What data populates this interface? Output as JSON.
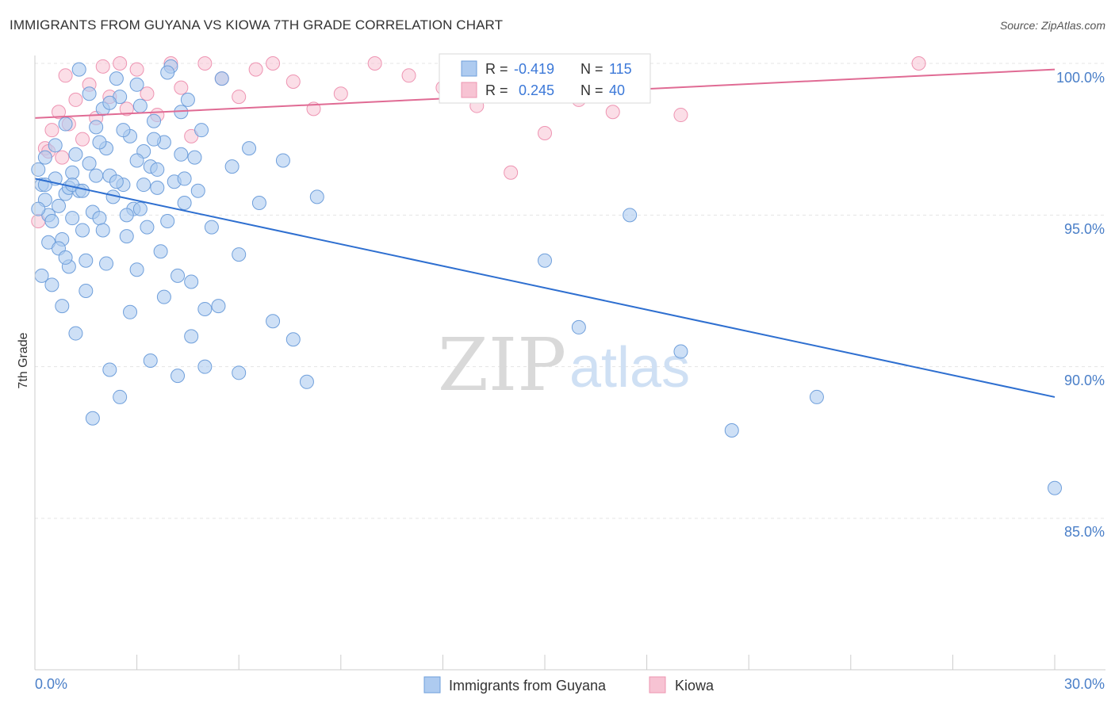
{
  "header": {
    "title": "IMMIGRANTS FROM GUYANA VS KIOWA 7TH GRADE CORRELATION CHART",
    "source": "Source: ZipAtlas.com"
  },
  "watermark": {
    "zip": "ZIP",
    "atlas": "atlas"
  },
  "legend_top": {
    "rows": [
      {
        "r_label": "R =",
        "r_value": "-0.419",
        "n_label": "N =",
        "n_value": "115"
      },
      {
        "r_label": "R =",
        "r_value": "0.245",
        "n_label": "N =",
        "n_value": "40"
      }
    ]
  },
  "legend_bottom": {
    "items": [
      "Immigrants from Guyana",
      "Kiowa"
    ]
  },
  "colors": {
    "blue_fill": "#aecbf0",
    "blue_stroke": "#6f9fdb",
    "blue_line": "#2e6fd0",
    "pink_fill": "#f7c3d3",
    "pink_stroke": "#ee94b2",
    "pink_line": "#e06b94",
    "axis_text": "#4a7fc8",
    "grid": "#e4e4e4"
  },
  "chart_data": {
    "type": "scatter",
    "title": "IMMIGRANTS FROM GUYANA VS KIOWA 7TH GRADE CORRELATION CHART",
    "xlabel": "",
    "ylabel": "7th Grade",
    "x_tick_labels": [
      "0.0%",
      "30.0%"
    ],
    "y_tick_labels": [
      "100.0%",
      "95.0%",
      "90.0%",
      "85.0%"
    ],
    "xlim": [
      0,
      30
    ],
    "ylim": [
      80.5,
      100.3
    ],
    "grid": true,
    "legend_position": "top-center",
    "series": [
      {
        "name": "Immigrants from Guyana",
        "color": "#aecbf0",
        "trend": {
          "x": [
            0,
            30
          ],
          "y": [
            96.2,
            89.0
          ]
        },
        "points": [
          [
            0.1,
            96.5
          ],
          [
            0.2,
            96.0
          ],
          [
            0.3,
            95.5
          ],
          [
            0.4,
            95.0
          ],
          [
            0.5,
            94.8
          ],
          [
            0.6,
            96.2
          ],
          [
            0.7,
            95.3
          ],
          [
            0.8,
            94.2
          ],
          [
            0.9,
            95.7
          ],
          [
            1.0,
            95.9
          ],
          [
            1.1,
            96.4
          ],
          [
            1.2,
            97.0
          ],
          [
            1.3,
            95.8
          ],
          [
            1.4,
            94.5
          ],
          [
            1.5,
            93.5
          ],
          [
            1.6,
            96.7
          ],
          [
            1.7,
            95.1
          ],
          [
            1.8,
            97.9
          ],
          [
            1.9,
            94.9
          ],
          [
            2.0,
            98.5
          ],
          [
            2.1,
            97.2
          ],
          [
            2.2,
            96.3
          ],
          [
            2.3,
            95.6
          ],
          [
            2.4,
            99.5
          ],
          [
            2.5,
            98.9
          ],
          [
            2.6,
            96.0
          ],
          [
            2.7,
            94.3
          ],
          [
            2.8,
            97.6
          ],
          [
            2.9,
            95.2
          ],
          [
            3.0,
            99.3
          ],
          [
            3.1,
            98.6
          ],
          [
            3.2,
            97.1
          ],
          [
            3.3,
            94.6
          ],
          [
            3.4,
            96.6
          ],
          [
            3.5,
            98.1
          ],
          [
            3.6,
            95.9
          ],
          [
            3.7,
            93.8
          ],
          [
            3.8,
            97.4
          ],
          [
            3.9,
            94.8
          ],
          [
            4.0,
            99.9
          ],
          [
            4.1,
            96.1
          ],
          [
            4.2,
            93.0
          ],
          [
            4.3,
            97.0
          ],
          [
            4.4,
            95.4
          ],
          [
            4.5,
            98.8
          ],
          [
            4.6,
            92.8
          ],
          [
            4.7,
            96.9
          ],
          [
            4.8,
            95.8
          ],
          [
            4.9,
            97.8
          ],
          [
            5.0,
            91.9
          ],
          [
            5.2,
            94.6
          ],
          [
            5.5,
            99.5
          ],
          [
            5.8,
            96.6
          ],
          [
            6.0,
            93.7
          ],
          [
            6.3,
            97.2
          ],
          [
            6.6,
            95.4
          ],
          [
            7.0,
            91.5
          ],
          [
            7.3,
            96.8
          ],
          [
            7.6,
            90.9
          ],
          [
            8.0,
            89.5
          ],
          [
            8.3,
            95.6
          ],
          [
            0.2,
            93.0
          ],
          [
            0.5,
            92.7
          ],
          [
            0.8,
            92.0
          ],
          [
            1.0,
            93.3
          ],
          [
            1.2,
            91.1
          ],
          [
            1.5,
            92.5
          ],
          [
            1.7,
            88.3
          ],
          [
            2.0,
            94.5
          ],
          [
            2.2,
            89.9
          ],
          [
            2.5,
            89.0
          ],
          [
            2.8,
            91.8
          ],
          [
            3.0,
            93.2
          ],
          [
            3.4,
            90.2
          ],
          [
            3.8,
            92.3
          ],
          [
            4.2,
            89.7
          ],
          [
            4.6,
            91.0
          ],
          [
            5.0,
            90.0
          ],
          [
            5.4,
            92.0
          ],
          [
            6.0,
            89.8
          ],
          [
            0.3,
            96.9
          ],
          [
            0.6,
            97.3
          ],
          [
            0.9,
            98.0
          ],
          [
            1.1,
            96.0
          ],
          [
            1.3,
            99.8
          ],
          [
            1.6,
            99.0
          ],
          [
            1.9,
            97.4
          ],
          [
            2.2,
            98.7
          ],
          [
            2.6,
            97.8
          ],
          [
            3.1,
            95.2
          ],
          [
            3.6,
            96.5
          ],
          [
            4.3,
            98.4
          ],
          [
            0.1,
            95.2
          ],
          [
            0.4,
            94.1
          ],
          [
            0.7,
            93.9
          ],
          [
            0.9,
            93.6
          ],
          [
            1.1,
            94.9
          ],
          [
            1.4,
            95.8
          ],
          [
            1.8,
            96.3
          ],
          [
            2.1,
            93.4
          ],
          [
            2.4,
            96.1
          ],
          [
            2.7,
            95.0
          ],
          [
            3.0,
            96.8
          ],
          [
            3.2,
            96.0
          ],
          [
            3.5,
            97.5
          ],
          [
            3.9,
            99.7
          ],
          [
            4.4,
            96.2
          ],
          [
            0.3,
            96.0
          ],
          [
            15.0,
            93.5
          ],
          [
            16.0,
            91.3
          ],
          [
            17.5,
            95.0
          ],
          [
            19.0,
            90.5
          ],
          [
            20.5,
            87.9
          ],
          [
            23.0,
            89.0
          ],
          [
            30.0,
            86.0
          ]
        ]
      },
      {
        "name": "Kiowa",
        "color": "#f7c3d3",
        "trend": {
          "x": [
            0,
            30
          ],
          "y": [
            98.2,
            99.8
          ]
        },
        "points": [
          [
            0.1,
            94.8
          ],
          [
            0.3,
            97.2
          ],
          [
            0.5,
            97.8
          ],
          [
            0.7,
            98.4
          ],
          [
            0.9,
            99.6
          ],
          [
            1.0,
            98.0
          ],
          [
            1.2,
            98.8
          ],
          [
            1.4,
            97.5
          ],
          [
            1.6,
            99.3
          ],
          [
            1.8,
            98.2
          ],
          [
            2.0,
            99.9
          ],
          [
            2.2,
            98.9
          ],
          [
            2.5,
            100.0
          ],
          [
            2.7,
            98.5
          ],
          [
            3.0,
            99.8
          ],
          [
            3.3,
            99.0
          ],
          [
            3.6,
            98.3
          ],
          [
            4.0,
            100.0
          ],
          [
            4.3,
            99.2
          ],
          [
            4.6,
            97.6
          ],
          [
            5.0,
            100.0
          ],
          [
            5.5,
            99.5
          ],
          [
            6.0,
            98.9
          ],
          [
            6.5,
            99.8
          ],
          [
            7.0,
            100.0
          ],
          [
            7.6,
            99.4
          ],
          [
            8.2,
            98.5
          ],
          [
            9.0,
            99.0
          ],
          [
            10.0,
            100.0
          ],
          [
            11.0,
            99.6
          ],
          [
            12.0,
            99.2
          ],
          [
            13.0,
            98.6
          ],
          [
            14.0,
            96.4
          ],
          [
            15.0,
            97.7
          ],
          [
            16.0,
            98.8
          ],
          [
            17.0,
            98.4
          ],
          [
            19.0,
            98.3
          ],
          [
            0.4,
            97.1
          ],
          [
            0.8,
            96.9
          ],
          [
            26.0,
            100.0
          ]
        ]
      }
    ]
  }
}
